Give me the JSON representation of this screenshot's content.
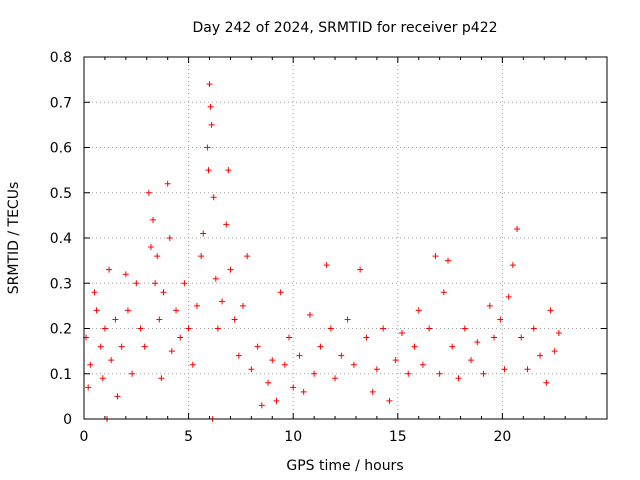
{
  "chart_data": {
    "type": "scatter",
    "title": "Day 242 of 2024, SRMTID for receiver p422",
    "xlabel": "GPS time / hours",
    "ylabel": "SRMTID / TECUs",
    "xlim": [
      0,
      25
    ],
    "ylim": [
      0,
      0.8
    ],
    "x_ticks": [
      0,
      5,
      10,
      15,
      20
    ],
    "x_tick_labels": [
      "0",
      "5",
      "10",
      "15",
      "20"
    ],
    "y_ticks": [
      0,
      0.1,
      0.2,
      0.3,
      0.4,
      0.5,
      0.6,
      0.7,
      0.8
    ],
    "y_tick_labels": [
      "0",
      "0.1",
      "0.2",
      "0.3",
      "0.4",
      "0.5",
      "0.6",
      "0.7",
      "0.8"
    ],
    "grid": true,
    "marker": "plus",
    "series": [
      {
        "name": "SRMTID",
        "color": "#ff0000",
        "approx_points": [
          [
            0.1,
            0.18
          ],
          [
            0.2,
            0.07
          ],
          [
            0.3,
            0.12
          ],
          [
            0.5,
            0.28
          ],
          [
            0.6,
            0.24
          ],
          [
            0.8,
            0.16
          ],
          [
            0.9,
            0.09
          ],
          [
            1.0,
            0.2
          ],
          [
            1.1,
            0.0
          ],
          [
            1.2,
            0.33
          ],
          [
            1.3,
            0.13
          ],
          [
            1.5,
            0.22
          ],
          [
            1.6,
            0.05
          ],
          [
            1.8,
            0.16
          ],
          [
            2.0,
            0.32
          ],
          [
            2.1,
            0.24
          ],
          [
            2.3,
            0.1
          ],
          [
            2.5,
            0.3
          ],
          [
            2.7,
            0.2
          ],
          [
            2.9,
            0.16
          ],
          [
            3.1,
            0.5
          ],
          [
            3.2,
            0.38
          ],
          [
            3.3,
            0.44
          ],
          [
            3.4,
            0.3
          ],
          [
            3.5,
            0.36
          ],
          [
            3.6,
            0.22
          ],
          [
            3.7,
            0.09
          ],
          [
            3.8,
            0.28
          ],
          [
            4.0,
            0.52
          ],
          [
            4.1,
            0.4
          ],
          [
            4.2,
            0.15
          ],
          [
            4.4,
            0.24
          ],
          [
            4.6,
            0.18
          ],
          [
            4.8,
            0.3
          ],
          [
            5.0,
            0.2
          ],
          [
            5.2,
            0.12
          ],
          [
            5.4,
            0.25
          ],
          [
            5.6,
            0.36
          ],
          [
            5.7,
            0.41
          ],
          [
            5.9,
            0.6
          ],
          [
            5.95,
            0.55
          ],
          [
            6.0,
            0.74
          ],
          [
            6.05,
            0.69
          ],
          [
            6.1,
            0.65
          ],
          [
            6.15,
            0.0
          ],
          [
            6.2,
            0.49
          ],
          [
            6.3,
            0.31
          ],
          [
            6.4,
            0.2
          ],
          [
            6.6,
            0.26
          ],
          [
            6.8,
            0.43
          ],
          [
            6.9,
            0.55
          ],
          [
            7.0,
            0.33
          ],
          [
            7.2,
            0.22
          ],
          [
            7.4,
            0.14
          ],
          [
            7.6,
            0.25
          ],
          [
            7.8,
            0.36
          ],
          [
            8.0,
            0.11
          ],
          [
            8.3,
            0.16
          ],
          [
            8.5,
            0.03
          ],
          [
            8.8,
            0.08
          ],
          [
            9.0,
            0.13
          ],
          [
            9.2,
            0.04
          ],
          [
            9.4,
            0.28
          ],
          [
            9.6,
            0.12
          ],
          [
            9.8,
            0.18
          ],
          [
            10.0,
            0.07
          ],
          [
            10.3,
            0.14
          ],
          [
            10.5,
            0.06
          ],
          [
            10.8,
            0.23
          ],
          [
            11.0,
            0.1
          ],
          [
            11.3,
            0.16
          ],
          [
            11.6,
            0.34
          ],
          [
            11.8,
            0.2
          ],
          [
            12.0,
            0.09
          ],
          [
            12.3,
            0.14
          ],
          [
            12.6,
            0.22
          ],
          [
            12.9,
            0.12
          ],
          [
            13.2,
            0.33
          ],
          [
            13.5,
            0.18
          ],
          [
            13.8,
            0.06
          ],
          [
            14.0,
            0.11
          ],
          [
            14.3,
            0.2
          ],
          [
            14.6,
            0.04
          ],
          [
            14.9,
            0.13
          ],
          [
            15.2,
            0.19
          ],
          [
            15.5,
            0.1
          ],
          [
            15.8,
            0.16
          ],
          [
            16.0,
            0.24
          ],
          [
            16.2,
            0.12
          ],
          [
            16.5,
            0.2
          ],
          [
            16.8,
            0.36
          ],
          [
            17.0,
            0.1
          ],
          [
            17.2,
            0.28
          ],
          [
            17.4,
            0.35
          ],
          [
            17.6,
            0.16
          ],
          [
            17.9,
            0.09
          ],
          [
            18.2,
            0.2
          ],
          [
            18.5,
            0.13
          ],
          [
            18.8,
            0.17
          ],
          [
            19.1,
            0.1
          ],
          [
            19.4,
            0.25
          ],
          [
            19.6,
            0.18
          ],
          [
            19.9,
            0.22
          ],
          [
            20.1,
            0.11
          ],
          [
            20.3,
            0.27
          ],
          [
            20.5,
            0.34
          ],
          [
            20.7,
            0.42
          ],
          [
            20.9,
            0.18
          ],
          [
            21.2,
            0.11
          ],
          [
            21.5,
            0.2
          ],
          [
            21.8,
            0.14
          ],
          [
            22.1,
            0.08
          ],
          [
            22.3,
            0.24
          ],
          [
            22.5,
            0.15
          ],
          [
            22.7,
            0.19
          ]
        ]
      }
    ]
  }
}
